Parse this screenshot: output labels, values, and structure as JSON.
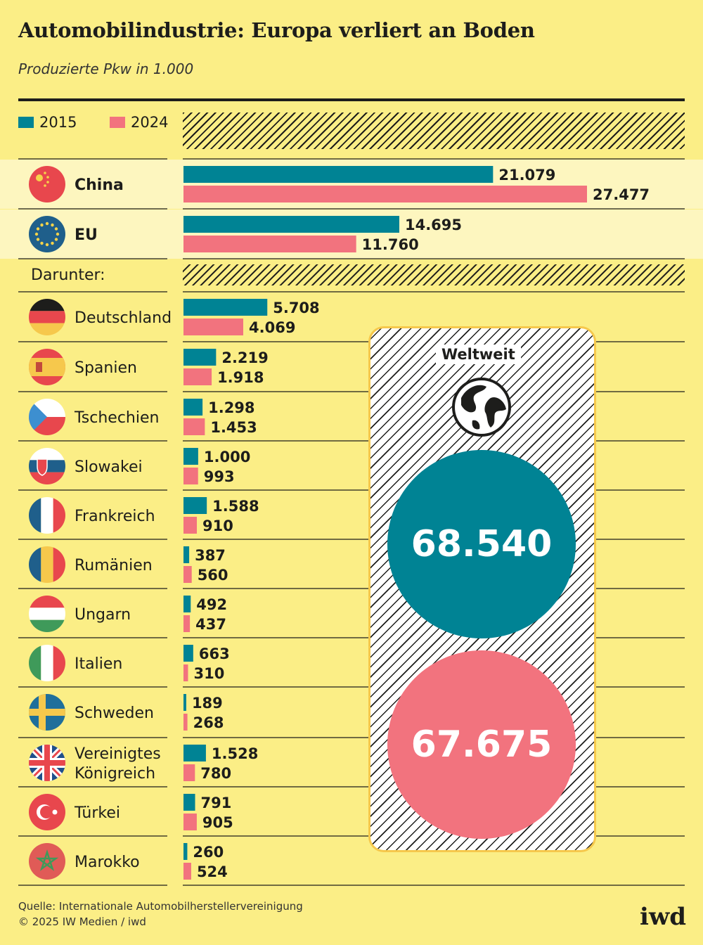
{
  "header": {
    "title": "Automobilindustrie: Europa verliert an Boden",
    "subtitle": "Produzierte Pkw in 1.000"
  },
  "legend": [
    {
      "label": "2015",
      "color": "#008394"
    },
    {
      "label": "2024",
      "color": "#f2737e"
    }
  ],
  "colors": {
    "y2015": "#008394",
    "y2024": "#f2737e",
    "background": "#fbee86",
    "highlight": "#fdf6bf"
  },
  "chart_data": {
    "type": "bar",
    "orientation": "horizontal",
    "title": "Automobilindustrie: Europa verliert an Boden",
    "subtitle": "Produzierte Pkw in 1.000",
    "categories": [
      "China",
      "EU",
      "Deutschland",
      "Spanien",
      "Tschechien",
      "Slowakei",
      "Frankreich",
      "Rumänien",
      "Ungarn",
      "Italien",
      "Schweden",
      "Vereinigtes Königreich",
      "Türkei",
      "Marokko"
    ],
    "series": [
      {
        "name": "2015",
        "color": "#008394",
        "values": [
          21079,
          14695,
          5708,
          2219,
          1298,
          1000,
          1588,
          387,
          492,
          663,
          189,
          1528,
          791,
          260
        ],
        "labels": [
          "21.079",
          "14.695",
          "5.708",
          "2.219",
          "1.298",
          "1.000",
          "1.588",
          "387",
          "492",
          "663",
          "189",
          "1.528",
          "791",
          "260"
        ]
      },
      {
        "name": "2024",
        "color": "#f2737e",
        "values": [
          27477,
          11760,
          4069,
          1918,
          1453,
          993,
          910,
          560,
          437,
          310,
          268,
          780,
          905,
          524
        ],
        "labels": [
          "27.477",
          "11.760",
          "4.069",
          "1.918",
          "1.453",
          "993",
          "910",
          "560",
          "437",
          "310",
          "268",
          "780",
          "905",
          "524"
        ]
      }
    ],
    "subgroup_label": "Darunter:",
    "worldwide": {
      "label": "Weltweit",
      "value_2015": "68.540",
      "value_2024": "67.675"
    }
  },
  "rows": [
    {
      "label": "China",
      "bold": true,
      "flag": "flag-china",
      "highlight": true
    },
    {
      "label": "EU",
      "bold": true,
      "flag": "flag-eu",
      "highlight": true
    },
    {
      "label": "Deutschland",
      "flag": "flag-germany",
      "highlight": false
    },
    {
      "label": "Spanien",
      "flag": "flag-spain",
      "highlight": false
    },
    {
      "label": "Tschechien",
      "flag": "flag-czechia",
      "highlight": false
    },
    {
      "label": "Slowakei",
      "flag": "flag-slovakia",
      "highlight": false
    },
    {
      "label": "Frankreich",
      "flag": "flag-france",
      "highlight": false
    },
    {
      "label": "Rumänien",
      "flag": "flag-romania",
      "highlight": false
    },
    {
      "label": "Ungarn",
      "flag": "flag-hungary",
      "highlight": false
    },
    {
      "label": "Italien",
      "flag": "flag-italy",
      "highlight": false
    },
    {
      "label": "Schweden",
      "flag": "flag-sweden",
      "highlight": false
    },
    {
      "label": "Vereinigtes Königreich",
      "flag": "flag-uk",
      "highlight": false
    },
    {
      "label": "Türkei",
      "flag": "flag-turkey",
      "highlight": false
    },
    {
      "label": "Marokko",
      "flag": "flag-morocco",
      "highlight": false
    }
  ],
  "worldwide": {
    "label": "Weltweit",
    "icon": "globe-icon",
    "value_2015": "68.540",
    "value_2024": "67.675"
  },
  "footer": {
    "source": "Quelle: Internationale Automobilherstellervereinigung",
    "copyright": "© 2025 IW Medien / iwd",
    "logo": "iwd"
  }
}
